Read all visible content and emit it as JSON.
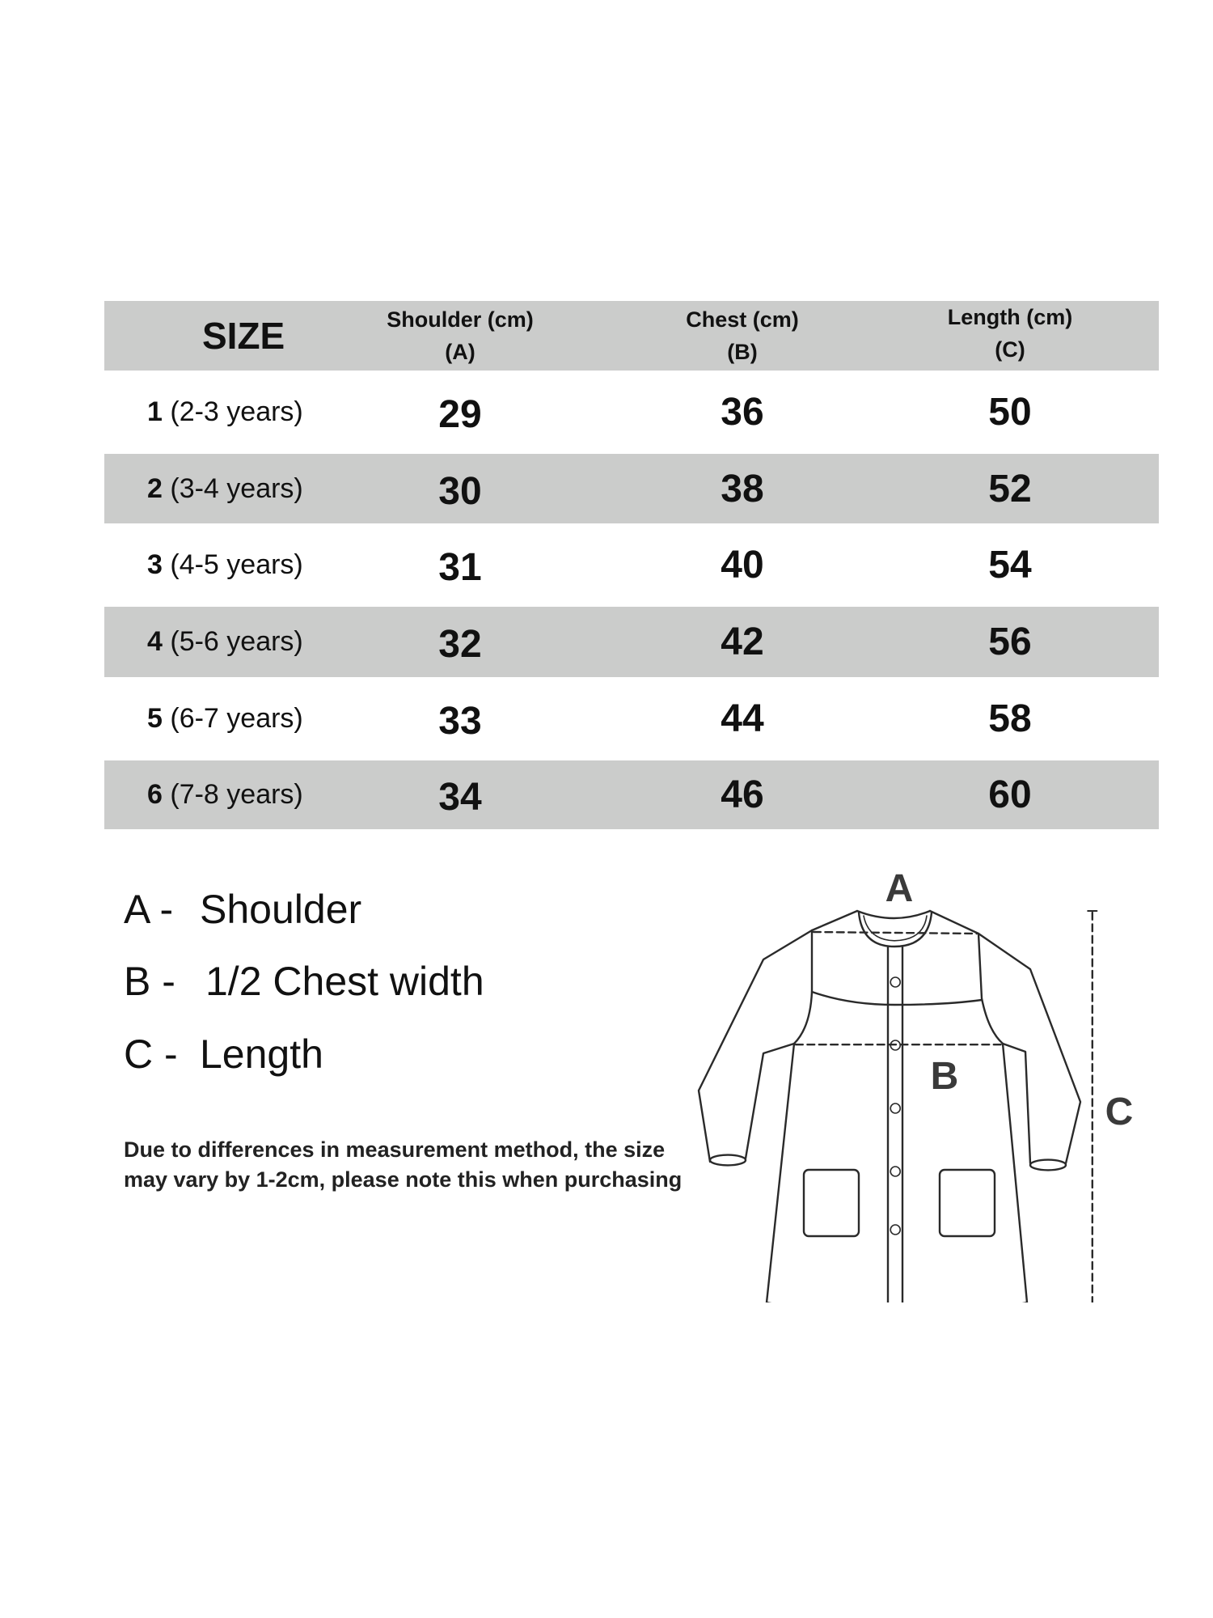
{
  "table": {
    "headers": {
      "size": "SIZE",
      "shoulder": "Shoulder (cm)",
      "shoulder_sub": "(A)",
      "chest": "Chest (cm)",
      "chest_sub": "(B)",
      "length": "Length (cm)",
      "length_sub": "(C)"
    },
    "rows": [
      {
        "size": "1",
        "age": "(2-3 years)",
        "shoulder": "29",
        "chest": "36",
        "length": "50"
      },
      {
        "size": "2",
        "age": "(3-4 years)",
        "shoulder": "30",
        "chest": "38",
        "length": "52"
      },
      {
        "size": "3",
        "age": "(4-5 years)",
        "shoulder": "31",
        "chest": "40",
        "length": "54"
      },
      {
        "size": "4",
        "age": "(5-6 years)",
        "shoulder": "32",
        "chest": "42",
        "length": "56"
      },
      {
        "size": "5",
        "age": "(6-7 years)",
        "shoulder": "33",
        "chest": "44",
        "length": "58"
      },
      {
        "size": "6",
        "age": "(7-8 years)",
        "shoulder": "34",
        "chest": "46",
        "length": "60"
      }
    ],
    "shade_color": "#cbcccb"
  },
  "legend": [
    {
      "key": "A -",
      "label": "Shoulder"
    },
    {
      "key": "B -",
      "label": "1/2 Chest width"
    },
    {
      "key": "C -",
      "label": "Length"
    }
  ],
  "note": {
    "line1": "Due to differences in measurement method, the size",
    "line2": "may vary by 1-2cm, please note this when purchasing"
  },
  "diagram": {
    "label_a": "A",
    "label_b": "B",
    "label_c": "C"
  }
}
